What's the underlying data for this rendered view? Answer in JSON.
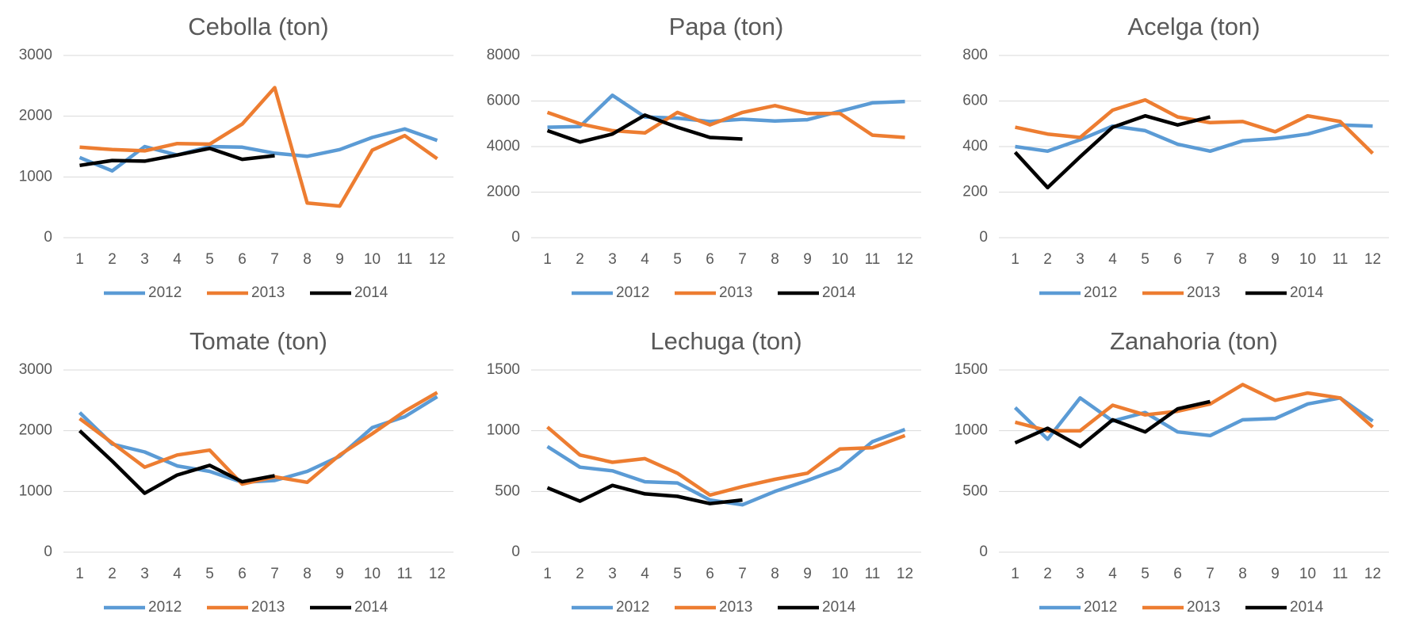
{
  "chart_data": [
    {
      "type": "line",
      "title": "Cebolla (ton)",
      "categories": [
        1,
        2,
        3,
        4,
        5,
        6,
        7,
        8,
        9,
        10,
        11,
        12
      ],
      "series": [
        {
          "name": "2012",
          "color": "#5b9bd5",
          "values": [
            1320,
            1100,
            1500,
            1360,
            1500,
            1490,
            1390,
            1340,
            1450,
            1650,
            1790,
            1600
          ]
        },
        {
          "name": "2013",
          "color": "#ed7d31",
          "values": [
            1490,
            1450,
            1430,
            1550,
            1540,
            1870,
            2470,
            570,
            520,
            1440,
            1680,
            1300
          ]
        },
        {
          "name": "2014",
          "color": "#000000",
          "values": [
            1190,
            1270,
            1260,
            1360,
            1470,
            1290,
            1350,
            null,
            null,
            null,
            null,
            null
          ]
        }
      ],
      "ylim": [
        0,
        3000
      ],
      "yticks": [
        0,
        1000,
        2000,
        3000
      ],
      "grid": true,
      "legend": "bottom"
    },
    {
      "type": "line",
      "title": "Papa (ton)",
      "categories": [
        1,
        2,
        3,
        4,
        5,
        6,
        7,
        8,
        9,
        10,
        11,
        12
      ],
      "series": [
        {
          "name": "2012",
          "color": "#5b9bd5",
          "values": [
            4850,
            4880,
            6250,
            5300,
            5250,
            5100,
            5200,
            5120,
            5180,
            5550,
            5920,
            5980
          ]
        },
        {
          "name": "2013",
          "color": "#ed7d31",
          "values": [
            5500,
            5000,
            4700,
            4600,
            5500,
            4950,
            5500,
            5800,
            5450,
            5450,
            4500,
            4400
          ]
        },
        {
          "name": "2014",
          "color": "#000000",
          "values": [
            4700,
            4200,
            4550,
            5380,
            4850,
            4400,
            4330,
            null,
            null,
            null,
            null,
            null
          ]
        }
      ],
      "ylim": [
        0,
        8000
      ],
      "yticks": [
        0,
        2000,
        4000,
        6000,
        8000
      ],
      "grid": true,
      "legend": "bottom"
    },
    {
      "type": "line",
      "title": "Acelga (ton)",
      "categories": [
        1,
        2,
        3,
        4,
        5,
        6,
        7,
        8,
        9,
        10,
        11,
        12
      ],
      "series": [
        {
          "name": "2012",
          "color": "#5b9bd5",
          "values": [
            400,
            380,
            430,
            490,
            470,
            410,
            380,
            425,
            435,
            455,
            495,
            490
          ]
        },
        {
          "name": "2013",
          "color": "#ed7d31",
          "values": [
            485,
            455,
            440,
            560,
            605,
            530,
            505,
            510,
            465,
            535,
            510,
            370
          ]
        },
        {
          "name": "2014",
          "color": "#000000",
          "values": [
            375,
            220,
            355,
            485,
            535,
            495,
            530,
            null,
            null,
            null,
            null,
            null
          ]
        }
      ],
      "ylim": [
        0,
        800
      ],
      "yticks": [
        0,
        200,
        400,
        600,
        800
      ],
      "grid": true,
      "legend": "bottom"
    },
    {
      "type": "line",
      "title": "Tomate (ton)",
      "categories": [
        1,
        2,
        3,
        4,
        5,
        6,
        7,
        8,
        9,
        10,
        11,
        12
      ],
      "series": [
        {
          "name": "2012",
          "color": "#5b9bd5",
          "values": [
            2300,
            1780,
            1650,
            1420,
            1330,
            1150,
            1180,
            1330,
            1580,
            2050,
            2230,
            2560
          ]
        },
        {
          "name": "2013",
          "color": "#ed7d31",
          "values": [
            2200,
            1800,
            1400,
            1600,
            1680,
            1120,
            1240,
            1150,
            1600,
            1950,
            2320,
            2630
          ]
        },
        {
          "name": "2014",
          "color": "#000000",
          "values": [
            2000,
            1500,
            970,
            1270,
            1430,
            1160,
            1260,
            null,
            null,
            null,
            null,
            null
          ]
        }
      ],
      "ylim": [
        0,
        3000
      ],
      "yticks": [
        0,
        1000,
        2000,
        3000
      ],
      "grid": true,
      "legend": "bottom"
    },
    {
      "type": "line",
      "title": "Lechuga (ton)",
      "categories": [
        1,
        2,
        3,
        4,
        5,
        6,
        7,
        8,
        9,
        10,
        11,
        12
      ],
      "series": [
        {
          "name": "2012",
          "color": "#5b9bd5",
          "values": [
            870,
            700,
            670,
            580,
            570,
            430,
            390,
            500,
            590,
            690,
            910,
            1010
          ]
        },
        {
          "name": "2013",
          "color": "#ed7d31",
          "values": [
            1030,
            800,
            740,
            770,
            650,
            470,
            540,
            600,
            650,
            850,
            860,
            960
          ]
        },
        {
          "name": "2014",
          "color": "#000000",
          "values": [
            530,
            420,
            550,
            480,
            460,
            400,
            430,
            null,
            null,
            null,
            null,
            null
          ]
        }
      ],
      "ylim": [
        0,
        1500
      ],
      "yticks": [
        0,
        500,
        1000,
        1500
      ],
      "grid": true,
      "legend": "bottom"
    },
    {
      "type": "line",
      "title": "Zanahoria (ton)",
      "categories": [
        1,
        2,
        3,
        4,
        5,
        6,
        7,
        8,
        9,
        10,
        11,
        12
      ],
      "series": [
        {
          "name": "2012",
          "color": "#5b9bd5",
          "values": [
            1190,
            930,
            1270,
            1080,
            1150,
            990,
            960,
            1090,
            1100,
            1220,
            1270,
            1080
          ]
        },
        {
          "name": "2013",
          "color": "#ed7d31",
          "values": [
            1070,
            1000,
            1000,
            1210,
            1130,
            1160,
            1220,
            1380,
            1250,
            1310,
            1270,
            1030
          ]
        },
        {
          "name": "2014",
          "color": "#000000",
          "values": [
            900,
            1020,
            870,
            1090,
            990,
            1180,
            1240,
            null,
            null,
            null,
            null,
            null
          ]
        }
      ],
      "ylim": [
        0,
        1500
      ],
      "yticks": [
        0,
        500,
        1000,
        1500
      ],
      "grid": true,
      "legend": "bottom"
    }
  ]
}
